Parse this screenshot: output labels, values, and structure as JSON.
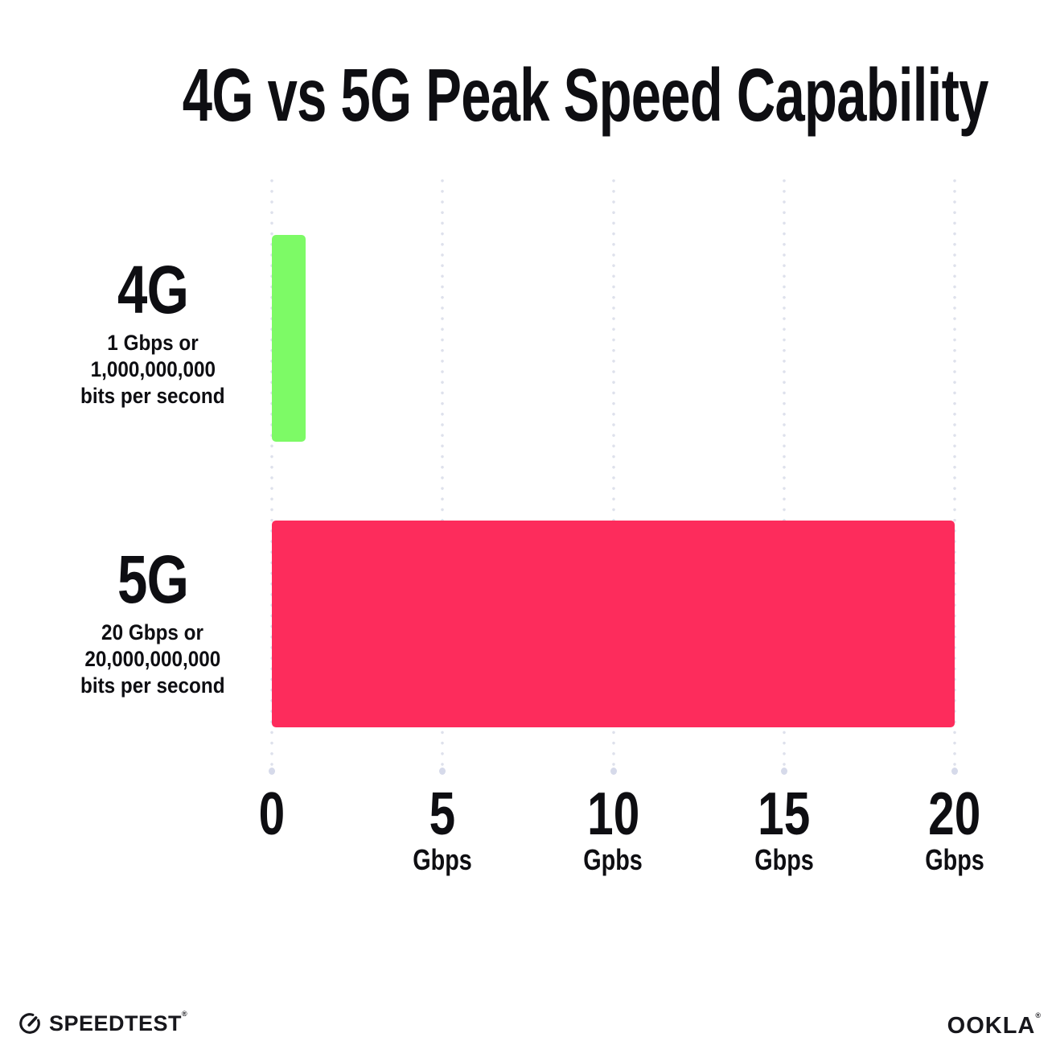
{
  "title": "4G vs 5G Peak Speed Capability",
  "chart_data": {
    "type": "bar",
    "orientation": "horizontal",
    "title": "4G vs 5G Peak Speed Capability",
    "categories": [
      "4G",
      "5G"
    ],
    "values": [
      1,
      20
    ],
    "unit": "Gbps",
    "category_descriptions": [
      [
        "1 Gbps or",
        "1,000,000,000",
        "bits per second"
      ],
      [
        "20 Gbps or",
        "20,000,000,000",
        "bits per second"
      ]
    ],
    "bar_colors": [
      "#7DFA66",
      "#FD2C5C"
    ],
    "xlim": [
      0,
      20
    ],
    "x_ticks": [
      {
        "value": 0,
        "label": "0",
        "unit": ""
      },
      {
        "value": 5,
        "label": "5",
        "unit": "Gbps"
      },
      {
        "value": 10,
        "label": "10",
        "unit": "Gpbs"
      },
      {
        "value": 15,
        "label": "15",
        "unit": "Gbps"
      },
      {
        "value": 20,
        "label": "20",
        "unit": "Gbps"
      }
    ],
    "grid": "vertical-dotted",
    "legend": "none"
  },
  "footer": {
    "speedtest_label": "SPEEDTEST",
    "speedtest_trademark": "®",
    "ookla_label": "OOKLA",
    "ookla_trademark": "®"
  },
  "colors": {
    "background": "#ffffff",
    "text": "#0e0e12",
    "grid_dot": "#dee1ec",
    "grid_end_dot": "#d6daea",
    "bar_4g": "#7DFA66",
    "bar_5g": "#FD2C5C"
  }
}
